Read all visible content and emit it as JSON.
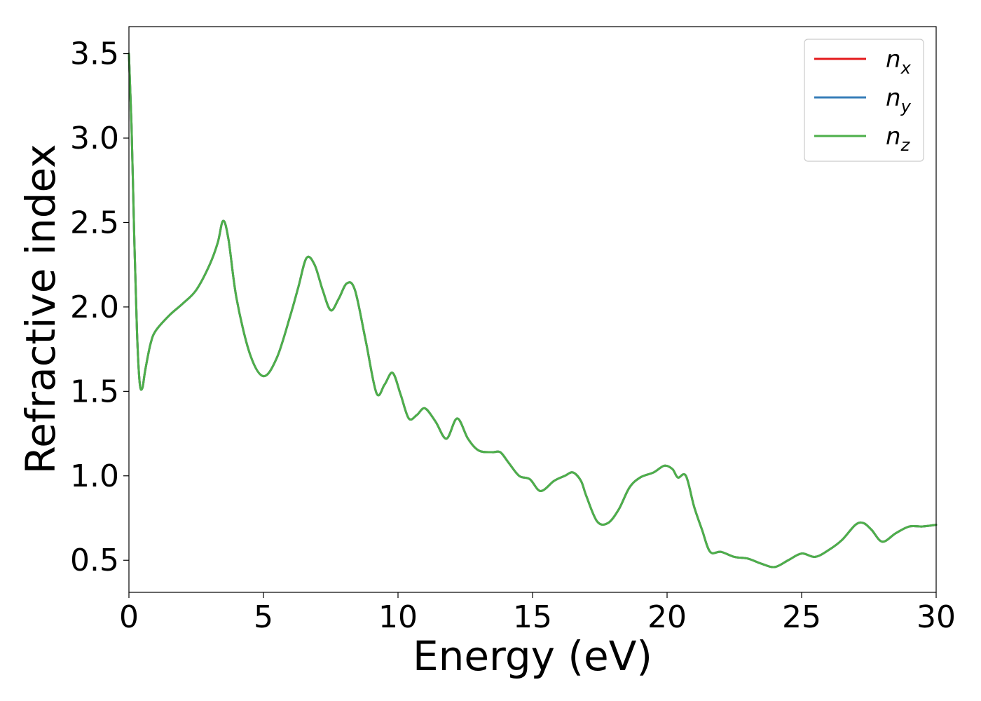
{
  "chart_data": {
    "type": "line",
    "title": "",
    "xlabel": "Energy (eV)",
    "ylabel": "Refractive index",
    "xlim": [
      0,
      30
    ],
    "ylim": [
      0.31,
      3.66
    ],
    "xticks": [
      0,
      5,
      10,
      15,
      20,
      25,
      30
    ],
    "xtick_labels": [
      "0",
      "5",
      "10",
      "15",
      "20",
      "25",
      "30"
    ],
    "yticks": [
      0.5,
      1.0,
      1.5,
      2.0,
      2.5,
      3.0,
      3.5
    ],
    "ytick_labels": [
      "0.5",
      "1.0",
      "1.5",
      "2.0",
      "2.5",
      "3.0",
      "3.5"
    ],
    "grid": false,
    "legend_position": "top-right",
    "x": [
      0,
      0.1,
      0.2,
      0.3,
      0.4,
      0.5,
      0.6,
      0.8,
      1.0,
      1.5,
      2.0,
      2.5,
      3.0,
      3.3,
      3.5,
      3.7,
      4.0,
      4.5,
      5.0,
      5.5,
      6.0,
      6.3,
      6.6,
      6.9,
      7.2,
      7.5,
      7.8,
      8.1,
      8.4,
      8.8,
      9.2,
      9.5,
      9.8,
      10.1,
      10.4,
      10.7,
      11.0,
      11.4,
      11.8,
      12.2,
      12.6,
      13.0,
      13.5,
      13.8,
      14.1,
      14.5,
      14.9,
      15.3,
      15.8,
      16.2,
      16.5,
      16.8,
      17.0,
      17.4,
      17.8,
      18.2,
      18.6,
      19.0,
      19.5,
      19.9,
      20.2,
      20.4,
      20.7,
      21.0,
      21.3,
      21.6,
      22.0,
      22.5,
      23.0,
      23.5,
      24.0,
      24.5,
      25.0,
      25.5,
      26.0,
      26.5,
      27.0,
      27.3,
      27.6,
      28.0,
      28.5,
      29.0,
      29.5,
      30.0
    ],
    "series": [
      {
        "name": "n_x",
        "label_base": "n",
        "label_sub": "x",
        "color": "#e41a1c",
        "values": [
          3.5,
          3.05,
          2.4,
          1.85,
          1.55,
          1.52,
          1.62,
          1.78,
          1.86,
          1.95,
          2.02,
          2.1,
          2.25,
          2.38,
          2.51,
          2.4,
          2.05,
          1.72,
          1.59,
          1.7,
          1.95,
          2.12,
          2.29,
          2.25,
          2.1,
          1.98,
          2.05,
          2.14,
          2.1,
          1.8,
          1.49,
          1.54,
          1.61,
          1.48,
          1.34,
          1.36,
          1.4,
          1.32,
          1.22,
          1.34,
          1.22,
          1.15,
          1.14,
          1.14,
          1.08,
          1.0,
          0.98,
          0.91,
          0.97,
          1.0,
          1.02,
          0.97,
          0.88,
          0.73,
          0.72,
          0.8,
          0.93,
          0.99,
          1.02,
          1.06,
          1.04,
          0.99,
          1.0,
          0.82,
          0.68,
          0.55,
          0.55,
          0.52,
          0.51,
          0.48,
          0.46,
          0.5,
          0.54,
          0.52,
          0.56,
          0.62,
          0.71,
          0.72,
          0.68,
          0.61,
          0.66,
          0.7,
          0.7,
          0.71
        ]
      },
      {
        "name": "n_y",
        "label_base": "n",
        "label_sub": "y",
        "color": "#377eb8",
        "values": [
          3.5,
          3.05,
          2.4,
          1.85,
          1.55,
          1.52,
          1.62,
          1.78,
          1.86,
          1.95,
          2.02,
          2.1,
          2.25,
          2.38,
          2.51,
          2.4,
          2.05,
          1.72,
          1.59,
          1.7,
          1.95,
          2.12,
          2.29,
          2.25,
          2.1,
          1.98,
          2.05,
          2.14,
          2.1,
          1.8,
          1.49,
          1.54,
          1.61,
          1.48,
          1.34,
          1.36,
          1.4,
          1.32,
          1.22,
          1.34,
          1.22,
          1.15,
          1.14,
          1.14,
          1.08,
          1.0,
          0.98,
          0.91,
          0.97,
          1.0,
          1.02,
          0.97,
          0.88,
          0.73,
          0.72,
          0.8,
          0.93,
          0.99,
          1.02,
          1.06,
          1.04,
          0.99,
          1.0,
          0.82,
          0.68,
          0.55,
          0.55,
          0.52,
          0.51,
          0.48,
          0.46,
          0.5,
          0.54,
          0.52,
          0.56,
          0.62,
          0.71,
          0.72,
          0.68,
          0.61,
          0.66,
          0.7,
          0.7,
          0.71
        ]
      },
      {
        "name": "n_z",
        "label_base": "n",
        "label_sub": "z",
        "color": "#4daf4a",
        "values": [
          3.5,
          3.05,
          2.4,
          1.85,
          1.55,
          1.52,
          1.62,
          1.78,
          1.86,
          1.95,
          2.02,
          2.1,
          2.25,
          2.38,
          2.51,
          2.4,
          2.05,
          1.72,
          1.59,
          1.7,
          1.95,
          2.12,
          2.29,
          2.25,
          2.1,
          1.98,
          2.05,
          2.14,
          2.1,
          1.8,
          1.49,
          1.54,
          1.61,
          1.48,
          1.34,
          1.36,
          1.4,
          1.32,
          1.22,
          1.34,
          1.22,
          1.15,
          1.14,
          1.14,
          1.08,
          1.0,
          0.98,
          0.91,
          0.97,
          1.0,
          1.02,
          0.97,
          0.88,
          0.73,
          0.72,
          0.8,
          0.93,
          0.99,
          1.02,
          1.06,
          1.04,
          0.99,
          1.0,
          0.82,
          0.68,
          0.55,
          0.55,
          0.52,
          0.51,
          0.48,
          0.46,
          0.5,
          0.54,
          0.52,
          0.56,
          0.62,
          0.71,
          0.72,
          0.68,
          0.61,
          0.66,
          0.7,
          0.7,
          0.71
        ]
      }
    ]
  }
}
